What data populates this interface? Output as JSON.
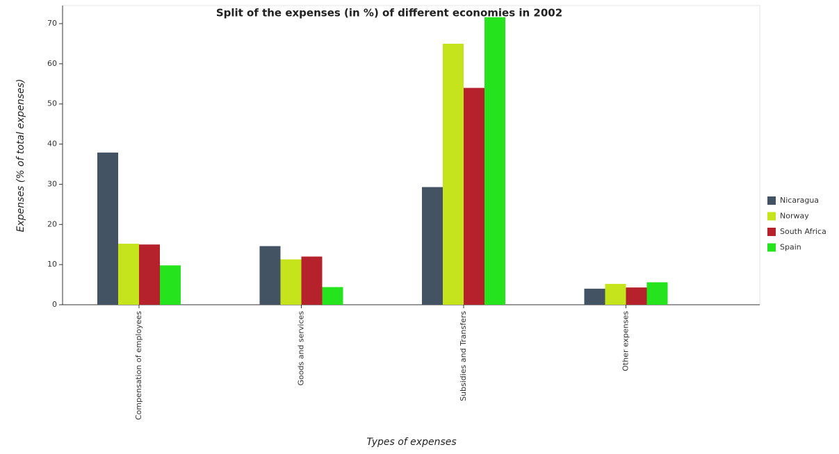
{
  "chart_data": {
    "type": "bar",
    "title": "Split of the expenses (in %) of different economies in 2002",
    "x_label": "Types of expenses",
    "y_label": "Expenses (% of total expenses)",
    "categories": [
      "Compensation of employees",
      "Goods and services",
      "Subsidies and Transfers",
      "Other expenses"
    ],
    "series": [
      {
        "name": "Nicaragua",
        "color": "#435363",
        "values": [
          37.9,
          14.6,
          29.3,
          4.0
        ]
      },
      {
        "name": "Norway",
        "color": "#c6e41c",
        "values": [
          15.2,
          11.3,
          65.0,
          5.2
        ]
      },
      {
        "name": "South Africa",
        "color": "#b5222b",
        "values": [
          15.0,
          12.0,
          54.0,
          4.3
        ]
      },
      {
        "name": "Spain",
        "color": "#25e31c",
        "values": [
          9.8,
          4.4,
          71.6,
          5.6
        ]
      }
    ],
    "ylim": [
      0,
      74.5
    ],
    "yticks": [
      0,
      10,
      20,
      30,
      40,
      50,
      60,
      70
    ],
    "legend": "right"
  }
}
